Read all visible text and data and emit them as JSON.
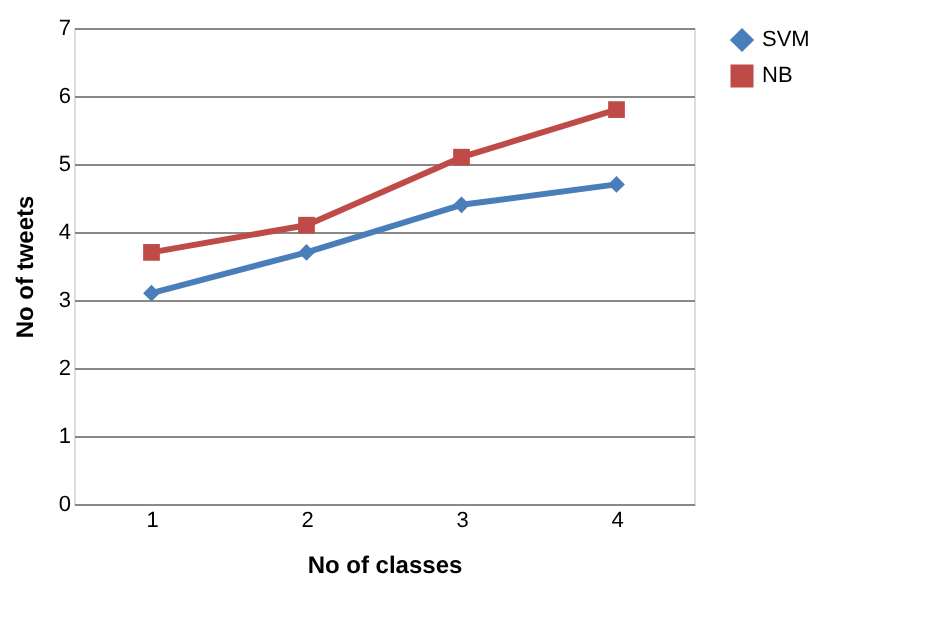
{
  "chart_data": {
    "type": "line",
    "xlabel": "No of classes",
    "ylabel": "No of tweets",
    "categories": [
      "1",
      "2",
      "3",
      "4"
    ],
    "series": [
      {
        "name": "SVM",
        "color": "#4a7ebb",
        "marker": "diamond",
        "values": [
          3.1,
          3.7,
          4.4,
          4.7
        ]
      },
      {
        "name": "NB",
        "color": "#be4b48",
        "marker": "square",
        "values": [
          3.7,
          4.1,
          5.1,
          5.8
        ]
      }
    ],
    "ylim": [
      0,
      7
    ],
    "yticks": [
      0,
      1,
      2,
      3,
      4,
      5,
      6,
      7
    ],
    "grid": "y",
    "legend": "right",
    "line_style": "solid"
  }
}
